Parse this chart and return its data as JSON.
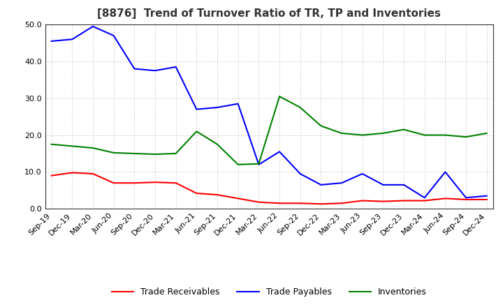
{
  "title": "[8876]  Trend of Turnover Ratio of TR, TP and Inventories",
  "ylim": [
    0,
    50.0
  ],
  "yticks": [
    0.0,
    10.0,
    20.0,
    30.0,
    40.0,
    50.0
  ],
  "x_labels": [
    "Sep-19",
    "Dec-19",
    "Mar-20",
    "Jun-20",
    "Sep-20",
    "Dec-20",
    "Mar-21",
    "Jun-21",
    "Sep-21",
    "Dec-21",
    "Mar-22",
    "Jun-22",
    "Sep-22",
    "Dec-22",
    "Mar-23",
    "Jun-23",
    "Sep-23",
    "Dec-23",
    "Mar-24",
    "Jun-24",
    "Sep-24",
    "Dec-24"
  ],
  "trade_receivables": [
    9.0,
    9.8,
    9.5,
    7.0,
    7.0,
    7.2,
    7.0,
    4.2,
    3.8,
    2.8,
    1.8,
    1.5,
    1.5,
    1.3,
    1.5,
    2.2,
    2.0,
    2.2,
    2.2,
    2.8,
    2.5,
    2.5
  ],
  "trade_payables": [
    45.5,
    46.0,
    49.5,
    47.0,
    38.0,
    37.5,
    38.5,
    27.0,
    27.5,
    28.5,
    12.0,
    15.5,
    9.5,
    6.5,
    7.0,
    9.5,
    6.5,
    6.5,
    3.0,
    10.0,
    3.0,
    3.5
  ],
  "inventories": [
    17.5,
    17.0,
    16.5,
    15.2,
    15.0,
    14.8,
    15.0,
    21.0,
    17.5,
    12.0,
    12.2,
    30.5,
    27.5,
    22.5,
    20.5,
    20.0,
    20.5,
    21.5,
    20.0,
    20.0,
    19.5,
    20.5
  ],
  "tr_color": "#ff0000",
  "tp_color": "#0000ff",
  "inv_color": "#008000",
  "background_color": "#ffffff",
  "grid_color": "#aaaaaa",
  "title_fontsize": 11,
  "legend_fontsize": 9,
  "tick_fontsize": 8
}
